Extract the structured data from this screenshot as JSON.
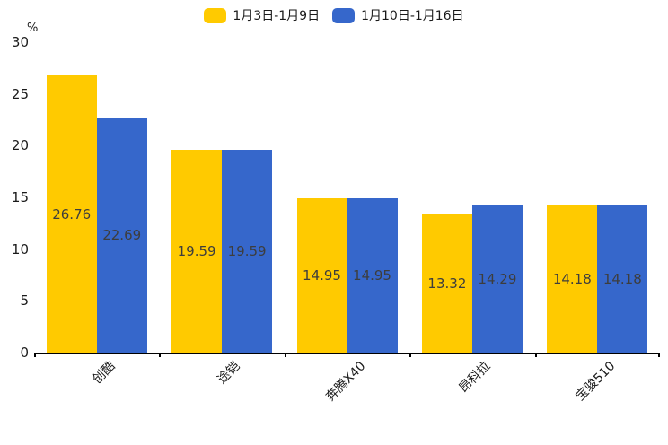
{
  "chart_data": {
    "type": "bar",
    "title": "",
    "unit_label": "%",
    "categories": [
      "创酷",
      "途铠",
      "奔腾X40",
      "昂科拉",
      "宝骏510"
    ],
    "series": [
      {
        "name": "1月3日-1月9日",
        "color": "#FFCA00",
        "values": [
          26.76,
          19.59,
          14.95,
          13.32,
          14.18
        ]
      },
      {
        "name": "1月10日-1月16日",
        "color": "#3667CB",
        "values": [
          22.69,
          19.59,
          14.95,
          14.29,
          14.18
        ]
      }
    ],
    "ylim": [
      0,
      30
    ],
    "yticks": [
      0,
      5,
      10,
      15,
      20,
      25,
      30
    ],
    "legend_position": "top",
    "grid": false,
    "value_label_position": "inside-center",
    "colors": {
      "axis": "#000000",
      "tick_label": "#1a1a1a",
      "value_label": "#3d3d3d",
      "background": "#ffffff"
    }
  }
}
